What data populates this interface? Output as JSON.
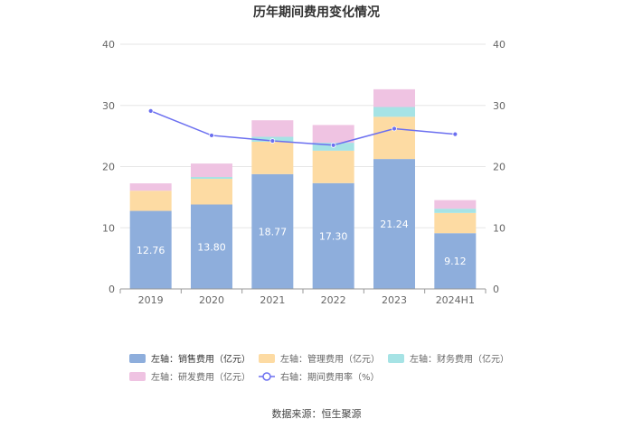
{
  "page_title": "历年期间费用变化情况",
  "source_text": "数据来源：恒生聚源",
  "chart_data": {
    "type": "bar",
    "stacked": true,
    "categories": [
      "2019",
      "2020",
      "2021",
      "2022",
      "2023",
      "2024H1"
    ],
    "series": [
      {
        "name": "左轴：销售费用（亿元）",
        "axis": "left",
        "color": "#8eaedc",
        "values": [
          12.76,
          13.8,
          18.77,
          17.3,
          21.24,
          9.12
        ],
        "labels": [
          "12.76",
          "13.80",
          "18.77",
          "17.30",
          "21.24",
          "9.12"
        ]
      },
      {
        "name": "左轴：管理费用（亿元）",
        "axis": "left",
        "color": "#fddba3",
        "values": [
          3.3,
          4.2,
          5.3,
          5.3,
          6.9,
          3.3
        ]
      },
      {
        "name": "左轴：财务费用（亿元）",
        "axis": "left",
        "color": "#a6e3e5",
        "values": [
          0.0,
          0.3,
          0.8,
          1.3,
          1.6,
          0.7
        ]
      },
      {
        "name": "左轴：研发费用（亿元）",
        "axis": "left",
        "color": "#efc3e2",
        "values": [
          1.2,
          2.2,
          2.7,
          2.9,
          2.9,
          1.4
        ]
      },
      {
        "name": "右轴：期间费用率（%）",
        "axis": "right",
        "type": "line",
        "color": "#6b6ff0",
        "values": [
          29.1,
          25.1,
          24.2,
          23.5,
          26.2,
          25.3
        ]
      }
    ],
    "left_axis": {
      "min": 0,
      "max": 40,
      "ticks": [
        "0",
        "10",
        "20",
        "30",
        "40"
      ]
    },
    "right_axis": {
      "min": 0,
      "max": 40,
      "ticks": [
        "0",
        "10",
        "20",
        "30",
        "40"
      ]
    },
    "grid": true,
    "legend_position": "bottom"
  }
}
